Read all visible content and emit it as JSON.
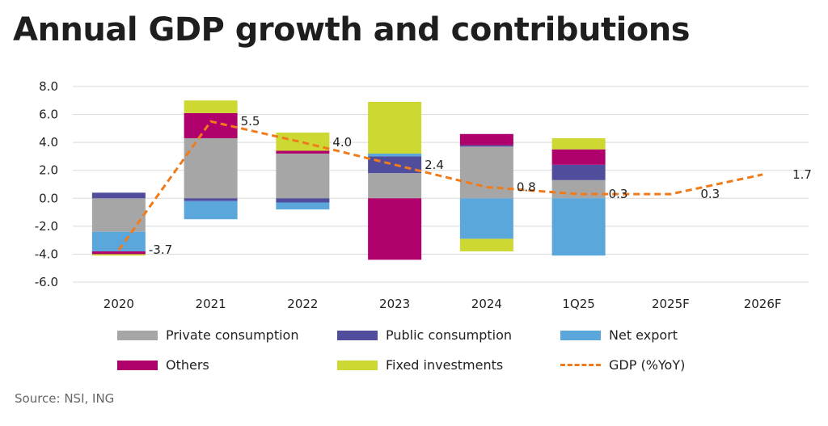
{
  "title": "Annual GDP growth and contributions",
  "source": "Source: NSI, ING",
  "colors": {
    "private": "#a6a6a6",
    "public": "#4f4d9c",
    "net_export": "#5ba7dc",
    "others": "#b0006b",
    "fixed": "#cdd832",
    "gdp": "#f07b1b"
  },
  "legend": [
    {
      "key": "private",
      "label": "Private consumption"
    },
    {
      "key": "public",
      "label": "Public consumption"
    },
    {
      "key": "net_export",
      "label": "Net export"
    },
    {
      "key": "others",
      "label": "Others"
    },
    {
      "key": "fixed",
      "label": "Fixed investments"
    },
    {
      "key": "gdp",
      "label": "GDP (%YoY)"
    }
  ],
  "chart_data": {
    "type": "bar",
    "stacked": true,
    "title": "Annual GDP growth and contributions",
    "categories": [
      "2020",
      "2021",
      "2022",
      "2023",
      "2024",
      "1Q25",
      "2025F",
      "2026F"
    ],
    "y_ticks": [
      "8.0",
      "6.0",
      "4.0",
      "2.0",
      "0.0",
      "-2.0",
      "-4.0",
      "-6.0"
    ],
    "ylim": [
      -6,
      8
    ],
    "grid": true,
    "legend_position": "bottom",
    "series": [
      {
        "key": "private",
        "name": "Private consumption",
        "values": [
          -2.4,
          4.3,
          3.2,
          1.8,
          3.7,
          1.3,
          null,
          null
        ]
      },
      {
        "key": "public",
        "name": "Public consumption",
        "values": [
          0.4,
          -0.2,
          -0.3,
          1.2,
          0.1,
          1.1,
          null,
          null
        ]
      },
      {
        "key": "net_export",
        "name": "Net export",
        "values": [
          -1.4,
          -1.3,
          -0.5,
          0.2,
          -2.9,
          -4.1,
          null,
          null
        ]
      },
      {
        "key": "others",
        "name": "Others",
        "values": [
          -0.2,
          1.8,
          0.2,
          -4.4,
          0.8,
          1.1,
          null,
          null
        ]
      },
      {
        "key": "fixed",
        "name": "Fixed investments",
        "values": [
          -0.1,
          0.9,
          1.3,
          3.7,
          -0.9,
          0.8,
          null,
          null
        ]
      }
    ],
    "gdp": {
      "name": "GDP (%YoY)",
      "values": [
        -3.7,
        5.5,
        4.0,
        2.4,
        0.8,
        0.3,
        0.3,
        1.7
      ],
      "labels": [
        "-3.7",
        "5.5",
        "4.0",
        "2.4",
        "0.8",
        "0.3",
        "0.3",
        "1.7"
      ]
    }
  }
}
